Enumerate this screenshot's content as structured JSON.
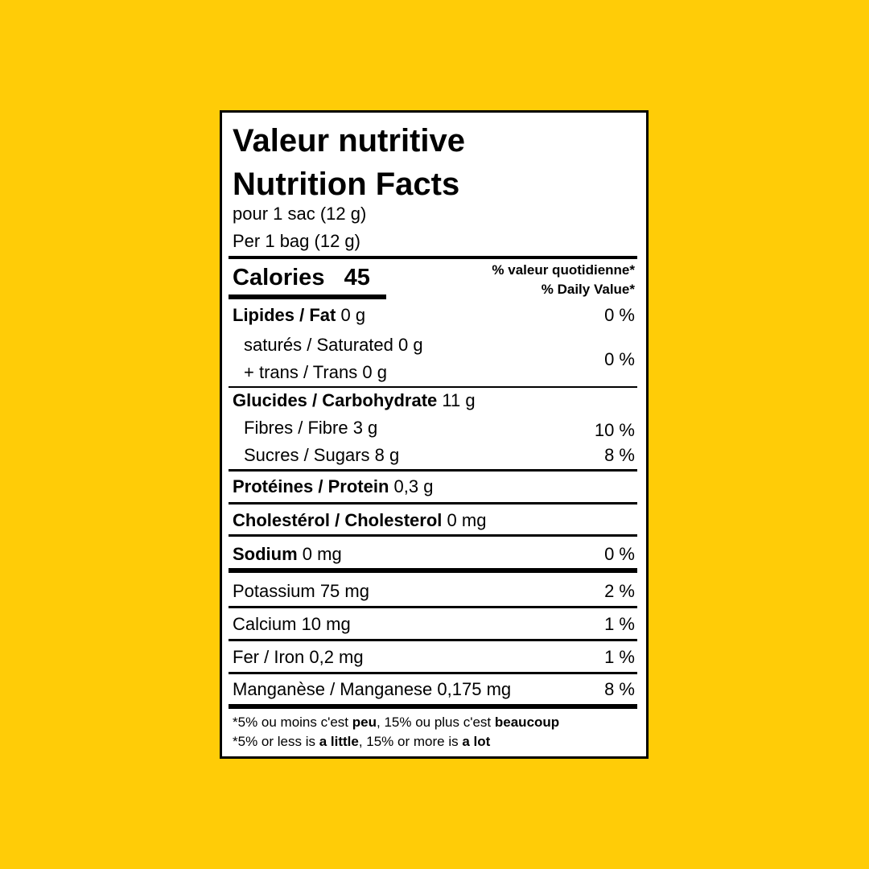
{
  "title_fr": "Valeur nutritive",
  "title_en": "Nutrition Facts",
  "serving_fr": "pour 1 sac (12 g)",
  "serving_en": "Per 1 bag (12 g)",
  "calories": {
    "label": "Calories",
    "value": 45
  },
  "dv_header_fr": "% valeur quotidienne*",
  "dv_header_en": "% Daily Value*",
  "fat": {
    "name": "Lipides / Fat",
    "amount": "0 g",
    "dv": "0 %",
    "sub": [
      "saturés / Saturated 0 g",
      "+ trans / Trans 0 g"
    ],
    "sub_dv": "0 %"
  },
  "carbohydrate": {
    "name": "Glucides / Carbohydrate",
    "amount": "11 g",
    "sub": [
      {
        "text": "Fibres / Fibre 3 g",
        "dv": "10 %"
      },
      {
        "text": "Sucres / Sugars 8 g",
        "dv": "8 %"
      }
    ]
  },
  "protein": {
    "name": "Protéines / Protein",
    "amount": "0,3 g"
  },
  "cholesterol": {
    "name": "Cholestérol / Cholesterol",
    "amount": "0 mg"
  },
  "sodium": {
    "name": "Sodium",
    "amount": "0 mg",
    "dv": "0 %"
  },
  "minerals": [
    {
      "text": "Potassium 75 mg",
      "dv": "2 %"
    },
    {
      "text": "Calcium 10 mg",
      "dv": "1 %"
    },
    {
      "text": "Fer / Iron 0,2 mg",
      "dv": "1 %"
    },
    {
      "text": "Manganèse / Manganese 0,175 mg",
      "dv": "8 %"
    }
  ],
  "footnote": [
    [
      {
        "text": "*5% ou moins c'est "
      },
      {
        "text": "peu",
        "bold": true
      },
      {
        "text": ", 15% ou plus c'est "
      },
      {
        "text": "beaucoup",
        "bold": true
      }
    ],
    [
      {
        "text": "*5% or less is "
      },
      {
        "text": "a little",
        "bold": true
      },
      {
        "text": ", 15% or more is "
      },
      {
        "text": "a lot",
        "bold": true
      }
    ]
  ]
}
